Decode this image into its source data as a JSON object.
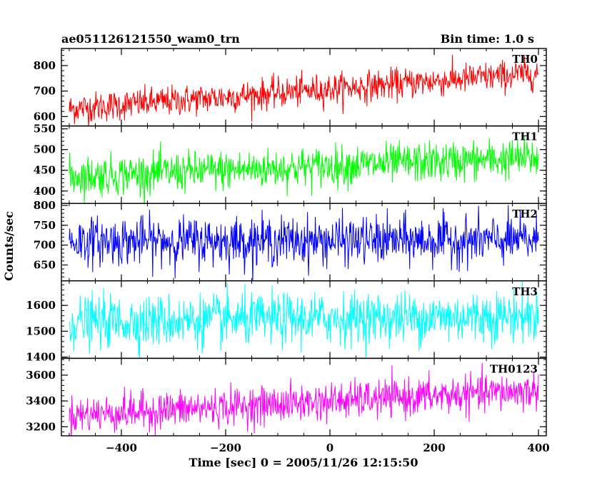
{
  "header": {
    "title": "ae051126121550_wam0_trn",
    "bin_time": "Bin time: 1.0 s"
  },
  "chart_data": {
    "type": "line",
    "xlabel": "Time [sec] 0 = 2005/11/26 12:15:50",
    "ylabel": "Counts/sec",
    "xlim": [
      -515,
      415
    ],
    "x_ticks": [
      -400,
      -200,
      0,
      200,
      400
    ],
    "x_tick_labels": [
      "−400",
      "−200",
      "0",
      "200",
      "400"
    ],
    "x_range_data": [
      -500,
      400
    ],
    "bin_time_s": 1.0,
    "panels": [
      {
        "name": "TH0",
        "color": "#ff0000",
        "ylim": [
          563,
          867
        ],
        "y_ticks": [
          600,
          700,
          800
        ],
        "trend_start": 630,
        "trend_end": 770,
        "noise_sigma": 30
      },
      {
        "name": "TH1",
        "color": "#00ff00",
        "ylim": [
          370,
          557
        ],
        "y_ticks": [
          400,
          450,
          500,
          550
        ],
        "trend_start": 435,
        "trend_end": 480,
        "noise_sigma": 24
      },
      {
        "name": "TH2",
        "color": "#0000ff",
        "ylim": [
          610,
          805
        ],
        "y_ticks": [
          650,
          700,
          750,
          800
        ],
        "trend_start": 710,
        "trend_end": 712,
        "noise_sigma": 30
      },
      {
        "name": "TH3",
        "color": "#00ffff",
        "ylim": [
          1395,
          1695
        ],
        "y_ticks": [
          1400,
          1500,
          1600
        ],
        "trend_start": 1535,
        "trend_end": 1560,
        "noise_sigma": 50
      },
      {
        "name": "TH0123",
        "color": "#ff00ff",
        "ylim": [
          3130,
          3730
        ],
        "y_ticks": [
          3200,
          3400,
          3600
        ],
        "trend_start": 3290,
        "trend_end": 3480,
        "noise_sigma": 72
      }
    ]
  }
}
